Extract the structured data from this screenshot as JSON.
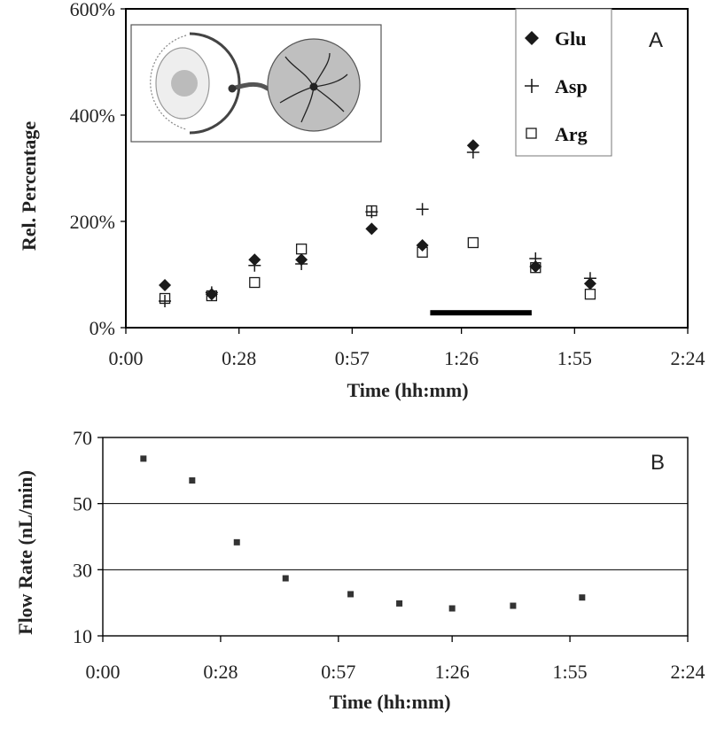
{
  "chart_data": [
    {
      "panel": "A",
      "type": "scatter",
      "xlabel": "Time (hh:mm)",
      "ylabel": "Rel. Percentage",
      "xlim": [
        0,
        144
      ],
      "ylim": [
        0,
        600
      ],
      "x_ticks": [
        0,
        29,
        58,
        86,
        115,
        144
      ],
      "x_tick_labels": [
        "0:00",
        "0:28",
        "0:57",
        "1:26",
        "1:55",
        "2:24"
      ],
      "y_ticks": [
        0,
        200,
        400,
        600
      ],
      "y_tick_labels": [
        "0%",
        "200%",
        "400%",
        "600%"
      ],
      "legend_position": "top-right",
      "series": [
        {
          "name": "Glu",
          "marker": "diamond",
          "x": [
            10,
            22,
            33,
            45,
            63,
            76,
            89,
            105,
            119
          ],
          "y": [
            80,
            63,
            128,
            128,
            186,
            155,
            343,
            115,
            83
          ]
        },
        {
          "name": "Asp",
          "marker": "plus",
          "x": [
            10,
            22,
            33,
            45,
            63,
            76,
            89,
            105,
            119
          ],
          "y": [
            50,
            66,
            117,
            120,
            218,
            223,
            330,
            130,
            93
          ]
        },
        {
          "name": "Arg",
          "marker": "square",
          "x": [
            10,
            22,
            33,
            45,
            63,
            76,
            89,
            105,
            119
          ],
          "y": [
            55,
            60,
            85,
            148,
            220,
            142,
            160,
            113,
            63
          ]
        }
      ],
      "annotations": [
        {
          "type": "bar",
          "x_start": 78,
          "x_end": 104,
          "y": 28
        }
      ]
    },
    {
      "panel": "B",
      "type": "scatter",
      "xlabel": "Time (hh:mm)",
      "ylabel": "Flow Rate (nL/min)",
      "xlim": [
        0,
        144
      ],
      "ylim": [
        10,
        70
      ],
      "x_ticks": [
        0,
        29,
        58,
        86,
        115,
        144
      ],
      "x_tick_labels": [
        "0:00",
        "0:28",
        "0:57",
        "1:26",
        "1:55",
        "2:24"
      ],
      "y_ticks": [
        10,
        30,
        50,
        70
      ],
      "y_tick_labels": [
        "10",
        "30",
        "50",
        "70"
      ],
      "grid": true,
      "series": [
        {
          "marker": "square-filled",
          "x": [
            10,
            22,
            33,
            45,
            61,
            73,
            86,
            101,
            118
          ],
          "y": [
            63.6,
            57,
            38.3,
            27.4,
            22.6,
            19.8,
            18.3,
            19.1,
            21.6
          ]
        }
      ]
    }
  ],
  "colors": {
    "marker": "#1a1a1a",
    "inset_fill": "#bfbfbf",
    "inset_lens": "#cccccc"
  }
}
